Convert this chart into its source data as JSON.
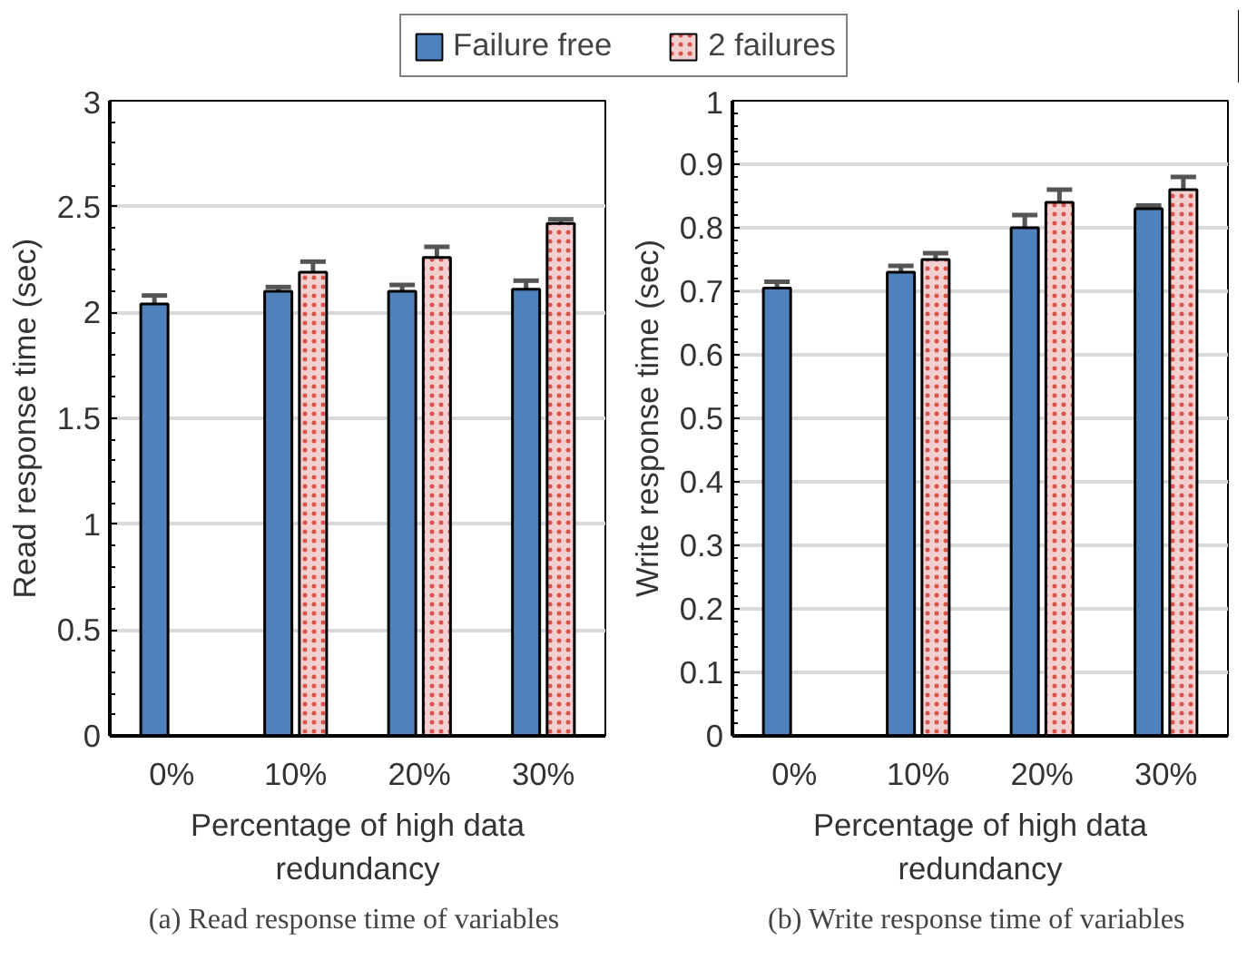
{
  "chart_data": [
    {
      "type": "bar",
      "categories": [
        "0%",
        "10%",
        "20%",
        "30%"
      ],
      "xlabel": "Percentage of high data redundancy",
      "ylabel": "Read response time (sec)",
      "ylim": [
        0,
        3
      ],
      "yticks": [
        0,
        0.5,
        1,
        1.5,
        2,
        2.5,
        3
      ],
      "grid": "y",
      "legend": "top",
      "series": [
        {
          "name": "Failure free",
          "color": "#4f81bd",
          "values": [
            2.04,
            2.1,
            2.1,
            2.11
          ],
          "errors": [
            0.04,
            0.02,
            0.03,
            0.04
          ]
        },
        {
          "name": "2 failures",
          "color": "#f2d0d0",
          "values": [
            0,
            2.19,
            2.26,
            2.42
          ],
          "errors": [
            null,
            0.05,
            0.05,
            0.02
          ]
        }
      ],
      "annotations": [
        "(a)  Read response time of variables"
      ]
    },
    {
      "type": "bar",
      "categories": [
        "0%",
        "10%",
        "20%",
        "30%"
      ],
      "xlabel": "Percentage of high data redundancy",
      "ylabel": "Write response time (sec)",
      "ylim": [
        0,
        1
      ],
      "yticks": [
        0,
        0.1,
        0.2,
        0.3,
        0.4,
        0.5,
        0.6,
        0.7,
        0.8,
        0.9,
        1
      ],
      "grid": "y",
      "series": [
        {
          "color": "#4f81bd",
          "values": [
            0.705,
            0.73,
            0.8,
            0.83
          ],
          "errors": [
            0.01,
            0.01,
            0.02,
            0.005
          ]
        },
        {
          "color": "#f2d0d0",
          "values": [
            0,
            0.75,
            0.84,
            0.86
          ],
          "errors": [
            null,
            0.01,
            0.02,
            0.02
          ]
        }
      ],
      "annotations": [
        "(b)  Write response time of variables"
      ]
    }
  ]
}
